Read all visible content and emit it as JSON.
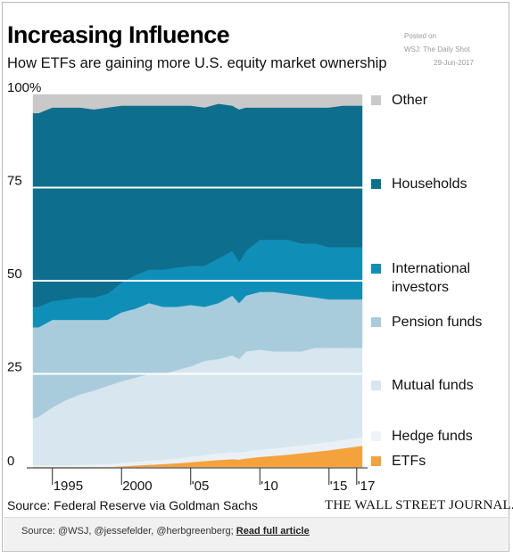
{
  "header": {
    "title": "Increasing Influence",
    "subtitle": "How ETFs are gaining more U.S. equity market ownership"
  },
  "posted": {
    "line1": "Posted on",
    "line2": "WSJ: The Daily Shot",
    "line3": "29-Jun-2017"
  },
  "source": "Source: Federal Reserve via Goldman Sachs",
  "masthead": "THE WALL STREET JOURNAL.",
  "footer": {
    "credit": "Source: @WSJ, @jessefelder, @herbgreenberg; ",
    "link_label": "Read full article"
  },
  "colors": {
    "etfs": "#f4a23c",
    "hedge_funds": "#eaf1f6",
    "mutual_funds": "#d7e6ef",
    "pension_funds": "#a9ccdc",
    "international_investors": "#0f8fb8",
    "households": "#0e6e8e",
    "other": "#c9c9c9",
    "gridline": "#ffffff"
  },
  "chart_data": {
    "type": "area",
    "stacked": true,
    "title": "Increasing Influence",
    "subtitle": "How ETFs are gaining more U.S. equity market ownership",
    "xlabel": "",
    "ylabel": "",
    "y_unit": "%",
    "xlim": [
      1993.6,
      2017.4
    ],
    "ylim": [
      0,
      100
    ],
    "x_ticks": [
      {
        "value": 1995,
        "label": "1995"
      },
      {
        "value": 2000,
        "label": "2000"
      },
      {
        "value": 2005,
        "label": "'05"
      },
      {
        "value": 2010,
        "label": "'10"
      },
      {
        "value": 2015,
        "label": "'15"
      },
      {
        "value": 2017,
        "label": "'17"
      }
    ],
    "y_ticks": [
      {
        "value": 0,
        "label": "0"
      },
      {
        "value": 25,
        "label": "25"
      },
      {
        "value": 50,
        "label": "50"
      },
      {
        "value": 75,
        "label": "75"
      },
      {
        "value": 100,
        "label": "100%"
      }
    ],
    "x": [
      1993.6,
      1994,
      1995,
      1996,
      1997,
      1998,
      1999,
      2000,
      2001,
      2002,
      2003,
      2004,
      2005,
      2006,
      2007,
      2008,
      2008.5,
      2009,
      2010,
      2011,
      2012,
      2013,
      2014,
      2015,
      2016,
      2017,
      2017.4
    ],
    "series": [
      {
        "name": "ETFs",
        "color": "#f4a23c",
        "values": [
          0,
          0,
          0,
          0,
          0,
          0,
          0,
          0.2,
          0.4,
          0.6,
          0.8,
          1.0,
          1.3,
          1.6,
          1.9,
          2.1,
          2.0,
          2.3,
          2.7,
          3.0,
          3.3,
          3.7,
          4.1,
          4.5,
          5.0,
          5.5,
          5.7
        ]
      },
      {
        "name": "Hedge funds",
        "color": "#eaf1f6",
        "values": [
          0.5,
          0.5,
          0.5,
          0.5,
          0.6,
          0.7,
          0.8,
          0.9,
          1.0,
          1.1,
          1.2,
          1.3,
          1.5,
          1.6,
          1.8,
          1.9,
          1.9,
          1.9,
          2.0,
          2.0,
          2.1,
          2.1,
          2.2,
          2.2,
          2.3,
          2.3,
          2.3
        ]
      },
      {
        "name": "Mutual funds",
        "color": "#d7e6ef",
        "values": [
          12.5,
          13.0,
          15.5,
          17.5,
          18.9,
          19.8,
          21.0,
          21.9,
          22.6,
          23.3,
          23.0,
          23.7,
          24.2,
          25.3,
          25.3,
          26.0,
          25.1,
          26.8,
          26.8,
          26.0,
          25.6,
          25.2,
          25.7,
          25.3,
          24.7,
          24.2,
          24.0
        ]
      },
      {
        "name": "Pension funds",
        "color": "#a9ccdc",
        "values": [
          24.5,
          24.0,
          23.5,
          21.5,
          20.0,
          19.0,
          17.7,
          18.5,
          18.5,
          19.0,
          18.0,
          17.0,
          16.5,
          14.5,
          15.0,
          16.0,
          15.0,
          15.0,
          15.5,
          16.0,
          15.5,
          15.0,
          13.5,
          13.0,
          13.0,
          13.0,
          13.0
        ]
      },
      {
        "name": "International investors",
        "color": "#0f8fb8",
        "values": [
          5.5,
          5.5,
          5.0,
          5.5,
          6.0,
          6.0,
          7.0,
          8.0,
          9.0,
          9.0,
          10.0,
          10.5,
          10.5,
          11.0,
          12.0,
          12.0,
          11.0,
          12.0,
          14.0,
          14.0,
          14.5,
          14.0,
          14.5,
          14.0,
          14.0,
          14.0,
          14.0
        ]
      },
      {
        "name": "Households",
        "color": "#0e6e8e",
        "values": [
          52.0,
          52.0,
          52.0,
          51.5,
          51.0,
          50.5,
          50.0,
          47.5,
          45.5,
          44.0,
          44.0,
          43.5,
          43.0,
          42.5,
          41.5,
          39.0,
          41.0,
          38.5,
          35.5,
          35.5,
          35.5,
          36.5,
          36.5,
          37.5,
          38.0,
          38.0,
          38.0
        ]
      },
      {
        "name": "Other",
        "color": "#c9c9c9",
        "values": [
          5.0,
          5.0,
          3.5,
          3.5,
          3.5,
          4.0,
          3.5,
          3.0,
          3.0,
          3.0,
          3.0,
          3.0,
          3.0,
          3.5,
          2.5,
          3.0,
          4.0,
          3.5,
          3.5,
          3.5,
          3.5,
          3.5,
          3.5,
          3.5,
          3.0,
          3.0,
          3.0
        ]
      }
    ],
    "legend": [
      "Other",
      "Households",
      "International investors",
      "Pension funds",
      "Mutual funds",
      "Hedge funds",
      "ETFs"
    ],
    "legend_placement": "right",
    "grid": true
  }
}
